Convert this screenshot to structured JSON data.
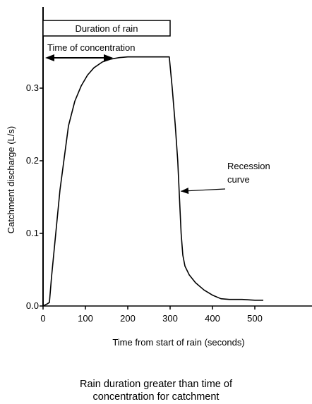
{
  "chart_data": {
    "type": "line",
    "title": "Rain duration greater than time of concentration for catchment",
    "caption_lines": [
      "Rain duration greater than time of",
      "concentration for catchment"
    ],
    "xlabel": "Time from start of rain (seconds)",
    "ylabel": "Catchment discharge (L/s)",
    "xlim": [
      0,
      520
    ],
    "ylim": [
      0,
      0.38
    ],
    "xticks": [
      0,
      100,
      200,
      300,
      400,
      500
    ],
    "xtick_labels": [
      "0",
      "100",
      "200",
      "300",
      "400",
      "500"
    ],
    "yticks": [
      0,
      0.1,
      0.2,
      0.3
    ],
    "ytick_labels": [
      "0.0",
      "0.1",
      "0.2",
      "0.3"
    ],
    "grid": false,
    "series": [
      {
        "x": [
          0,
          10,
          15,
          20,
          40,
          60,
          75,
          90,
          105,
          120,
          140,
          160,
          180,
          200,
          250,
          298,
          305,
          312,
          318,
          322,
          326,
          330,
          335,
          345,
          360,
          380,
          400,
          420,
          440,
          470,
          500,
          520
        ],
        "y": [
          0,
          0.003,
          0.005,
          0.04,
          0.16,
          0.248,
          0.282,
          0.303,
          0.318,
          0.328,
          0.336,
          0.34,
          0.342,
          0.343,
          0.343,
          0.343,
          0.3,
          0.25,
          0.2,
          0.15,
          0.1,
          0.07,
          0.055,
          0.043,
          0.032,
          0.022,
          0.015,
          0.01,
          0.009,
          0.009,
          0.008,
          0.008
        ]
      }
    ],
    "annotations": {
      "rain_box": {
        "label": "Duration of rain",
        "x_start": 0,
        "x_end": 300
      },
      "concentration_arrow": {
        "label": "Time of concentration",
        "x_start": 0,
        "x_end": 165
      },
      "recession": {
        "label_lines": [
          "Recession",
          "curve"
        ],
        "target_x": 320,
        "target_y": 0.16
      }
    },
    "colors": {
      "line": "#000000",
      "axes": "#000000",
      "background": "#ffffff"
    }
  }
}
